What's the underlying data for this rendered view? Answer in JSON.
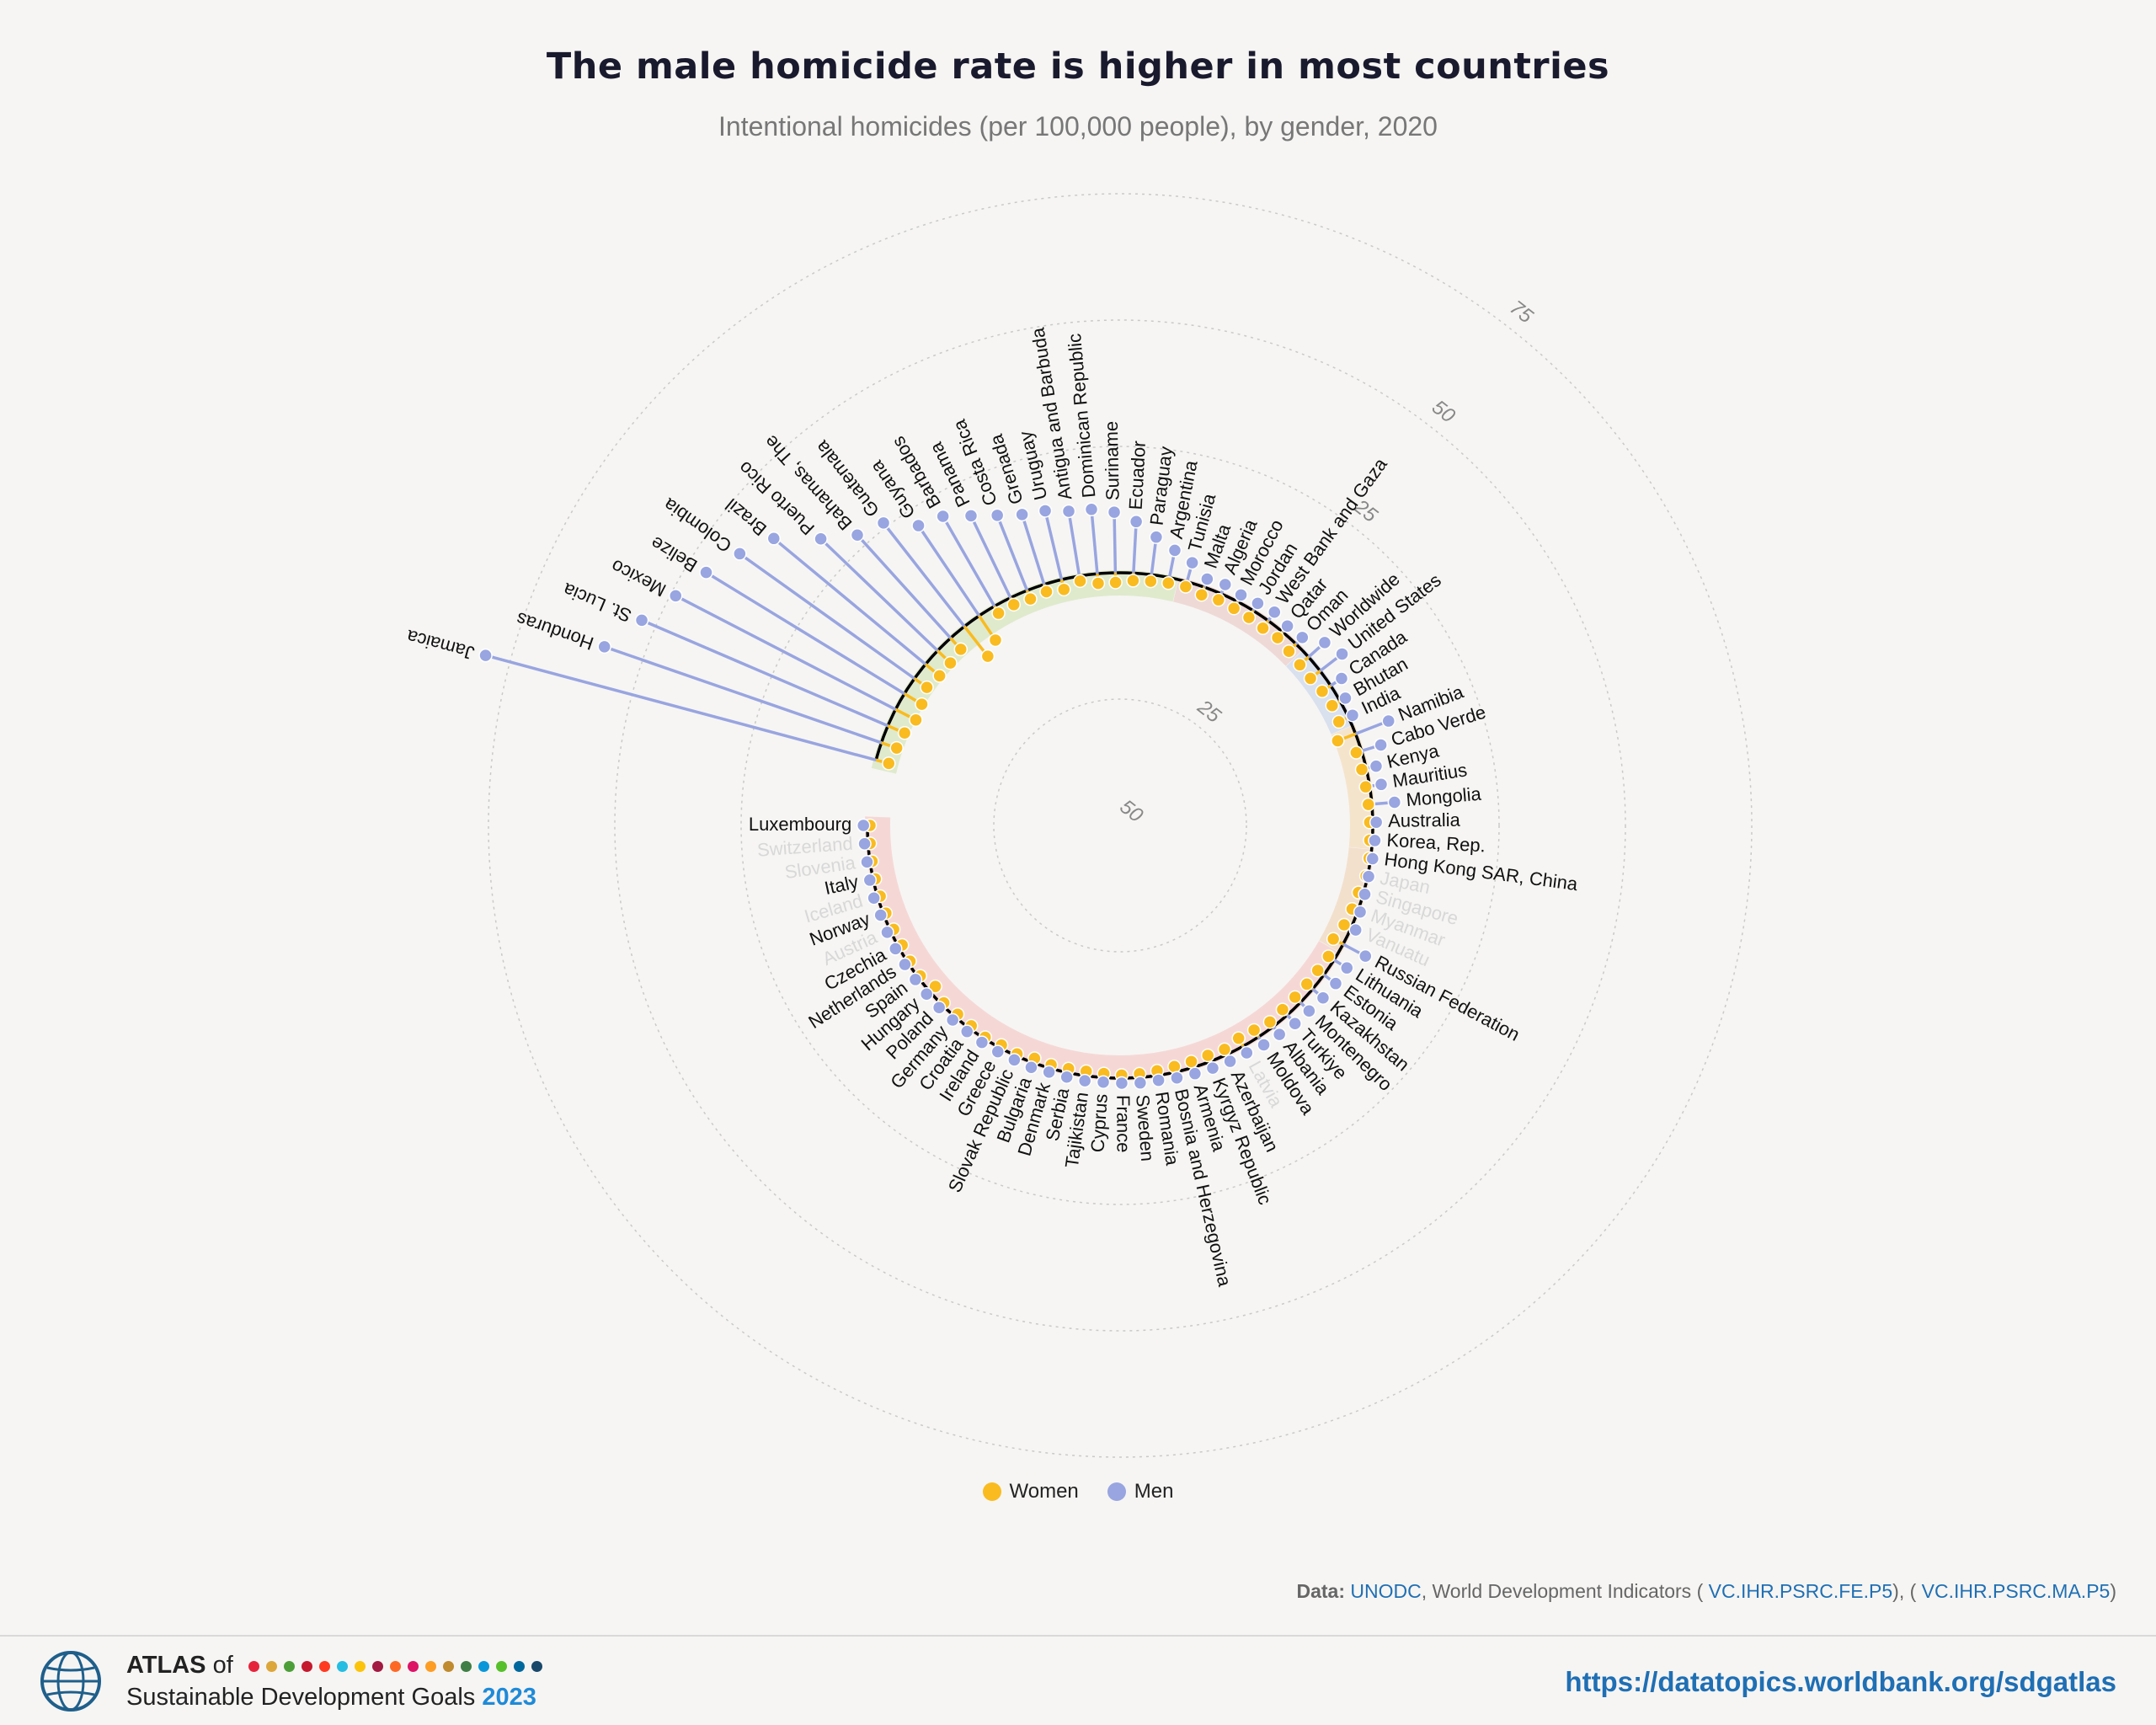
{
  "header": {
    "title": "The male homicide rate is higher in most countries",
    "subtitle": "Intentional homicides (per 100,000 people), by gender, 2020"
  },
  "legend": {
    "women_label": "Women",
    "men_label": "Men"
  },
  "colors": {
    "women": "#f9bb1f",
    "men": "#98a5e0",
    "baseline": "#000000",
    "band_latam": "#dbe8c6",
    "band_mena": "#ecd4d0",
    "band_southasia": "#d4dcec",
    "band_africa": "#f4e0c4",
    "band_eastasia": "#f1dcc6",
    "band_europe": "#f4d2d0"
  },
  "source": {
    "prefix": "Data:",
    "unodc": "UNODC",
    "wdi": ", World Development Indicators (",
    "code_fe": "VC.IHR.PSRC.FE.P5",
    "mid": "), (",
    "code_ma": "VC.IHR.PSRC.MA.P5",
    "end": ")"
  },
  "footer": {
    "atlas": "ATLAS",
    "of": "of",
    "line2": "Sustainable Development Goals",
    "year": "2023",
    "url": "https://datatopics.worldbank.org/sdgatlas",
    "sdg_colors": [
      "#e5243b",
      "#dda63a",
      "#4c9f38",
      "#c5192d",
      "#ff3a21",
      "#26bde2",
      "#fcc30b",
      "#a21942",
      "#fd6925",
      "#dd1367",
      "#fd9d24",
      "#bf8b2e",
      "#3f7e44",
      "#0a97d9",
      "#56c02b",
      "#00689d",
      "#19486a"
    ]
  },
  "chart_data": {
    "type": "radial-dumbbell",
    "title": "The male homicide rate is higher in most countries",
    "subtitle": "Intentional homicides (per 100,000 people), by gender, 2020",
    "unit": "per 100,000 people",
    "scale_outward_ticks": [
      25,
      50,
      75
    ],
    "scale_inward_ticks": [
      25,
      50
    ],
    "series": [
      "Women",
      "Men"
    ],
    "countries": [
      {
        "name": "Luxembourg",
        "women": 0.5,
        "men": 0.8,
        "label": true
      },
      {
        "name": "Switzerland",
        "women": 0.4,
        "men": 0.7,
        "label": false
      },
      {
        "name": "Slovenia",
        "women": 0.4,
        "men": 0.6,
        "label": false
      },
      {
        "name": "Italy",
        "women": 0.4,
        "men": 0.7,
        "label": true
      },
      {
        "name": "Iceland",
        "women": 0.5,
        "men": 0.8,
        "label": false
      },
      {
        "name": "Norway",
        "women": 0.5,
        "men": 0.6,
        "label": true
      },
      {
        "name": "Austria",
        "women": 0.7,
        "men": 0.7,
        "label": false
      },
      {
        "name": "Czechia",
        "women": 0.8,
        "men": 0.7,
        "label": true
      },
      {
        "name": "Netherlands",
        "women": 0.5,
        "men": 0.7,
        "label": true
      },
      {
        "name": "Spain",
        "women": 0.5,
        "men": 0.7,
        "label": true
      },
      {
        "name": "Hungary",
        "women": 1.5,
        "men": 0.8,
        "label": true
      },
      {
        "name": "Poland",
        "women": 0.5,
        "men": 0.8,
        "label": true
      },
      {
        "name": "Germany",
        "women": 0.7,
        "men": 0.8,
        "label": true
      },
      {
        "name": "Croatia",
        "women": 0.6,
        "men": 0.8,
        "label": true
      },
      {
        "name": "Ireland",
        "women": 0.3,
        "men": 0.9,
        "label": true
      },
      {
        "name": "Greece",
        "women": 0.6,
        "men": 0.9,
        "label": true
      },
      {
        "name": "Slovak Republic",
        "women": 0.4,
        "men": 0.9,
        "label": true
      },
      {
        "name": "Bulgaria",
        "women": 0.9,
        "men": 1.0,
        "label": true
      },
      {
        "name": "Denmark",
        "women": 0.7,
        "men": 0.8,
        "label": true
      },
      {
        "name": "Serbia",
        "women": 0.8,
        "men": 0.9,
        "label": true
      },
      {
        "name": "Tajikistan",
        "women": 0.9,
        "men": 1.0,
        "label": true
      },
      {
        "name": "Cyprus",
        "women": 0.8,
        "men": 0.9,
        "label": true
      },
      {
        "name": "France",
        "women": 0.6,
        "men": 1.0,
        "label": true
      },
      {
        "name": "Sweden",
        "women": 0.7,
        "men": 1.1,
        "label": true
      },
      {
        "name": "Romania",
        "women": 0.9,
        "men": 1.0,
        "label": true
      },
      {
        "name": "Bosnia and Herzegovina",
        "women": 1.1,
        "men": 1.2,
        "label": true
      },
      {
        "name": "Armenia",
        "women": 1.2,
        "men": 1.3,
        "label": true
      },
      {
        "name": "Kyrgyz Republic",
        "women": 1.3,
        "men": 1.4,
        "label": true
      },
      {
        "name": "Azerbaijan",
        "women": 1.1,
        "men": 1.5,
        "label": true
      },
      {
        "name": "Latvia",
        "women": 1.8,
        "men": 1.5,
        "label": false
      },
      {
        "name": "Moldova",
        "women": 1.6,
        "men": 1.9,
        "label": true
      },
      {
        "name": "Albania",
        "women": 1.1,
        "men": 2.0,
        "label": true
      },
      {
        "name": "Turkiye",
        "women": 1.4,
        "men": 2.3,
        "label": true
      },
      {
        "name": "Montenegro",
        "women": 1.5,
        "men": 2.4,
        "label": true
      },
      {
        "name": "Kazakhstan",
        "women": 1.5,
        "men": 2.7,
        "label": true
      },
      {
        "name": "Estonia",
        "women": 1.5,
        "men": 2.9,
        "label": true
      },
      {
        "name": "Lithuania",
        "women": 1.3,
        "men": 3.0,
        "label": true
      },
      {
        "name": "Russian Federation",
        "women": 2.2,
        "men": 5.0,
        "label": true
      },
      {
        "name": "Vanuatu",
        "women": 1.5,
        "men": 1.0,
        "label": false
      },
      {
        "name": "Myanmar",
        "women": 1.2,
        "men": 0.5,
        "label": false
      },
      {
        "name": "Singapore",
        "women": 1.0,
        "men": 0.3,
        "label": false
      },
      {
        "name": "Japan",
        "women": 0.3,
        "men": 0.2,
        "label": false
      },
      {
        "name": "Hong Kong SAR, China",
        "women": 0.3,
        "men": 0.4,
        "label": true
      },
      {
        "name": "Korea, Rep.",
        "women": 0.5,
        "men": 0.5,
        "label": true
      },
      {
        "name": "Australia",
        "women": 0.6,
        "men": 0.7,
        "label": true
      },
      {
        "name": "Mongolia",
        "women": 0.7,
        "men": 4.5,
        "label": true
      },
      {
        "name": "Mauritius",
        "women": 0.8,
        "men": 2.3,
        "label": true
      },
      {
        "name": "Kenya",
        "women": 0.9,
        "men": 2.0,
        "label": true
      },
      {
        "name": "Cabo Verde",
        "women": 1.1,
        "men": 4.0,
        "label": true
      },
      {
        "name": "Namibia",
        "women": 3.8,
        "men": 7.0,
        "label": true
      },
      {
        "name": "India",
        "women": 2.1,
        "men": 0.9,
        "label": true
      },
      {
        "name": "Bhutan",
        "women": 1.8,
        "men": 1.2,
        "label": true
      },
      {
        "name": "Canada",
        "women": 2.0,
        "men": 2.6,
        "label": true
      },
      {
        "name": "United States",
        "women": 2.4,
        "men": 5.5,
        "label": true
      },
      {
        "name": "Worldwide",
        "women": 2.3,
        "men": 4.3,
        "label": true
      },
      {
        "name": "Oman",
        "women": 2.0,
        "men": 1.8,
        "label": true
      },
      {
        "name": "Qatar",
        "women": 1.5,
        "men": 1.5,
        "label": true
      },
      {
        "name": "West Bank and Gaza",
        "women": 1.8,
        "men": 2.1,
        "label": true
      },
      {
        "name": "Jordan",
        "women": 1.6,
        "men": 1.7,
        "label": true
      },
      {
        "name": "Morocco",
        "women": 1.5,
        "men": 1.5,
        "label": true
      },
      {
        "name": "Algeria",
        "women": 1.3,
        "men": 2.0,
        "label": true
      },
      {
        "name": "Malta",
        "women": 1.6,
        "men": 1.7,
        "label": true
      },
      {
        "name": "Tunisia",
        "women": 1.0,
        "men": 3.9,
        "label": true
      },
      {
        "name": "Argentina",
        "women": 1.1,
        "men": 5.5,
        "label": true
      },
      {
        "name": "Paraguay",
        "women": 1.3,
        "men": 7.5,
        "label": true
      },
      {
        "name": "Ecuador",
        "women": 1.5,
        "men": 10.2,
        "label": true
      },
      {
        "name": "Suriname",
        "women": 1.9,
        "men": 12.0,
        "label": true
      },
      {
        "name": "Dominican Republic",
        "women": 1.9,
        "men": 12.8,
        "label": true
      },
      {
        "name": "Antigua and Barbuda",
        "women": 1.0,
        "men": 13.0,
        "label": true
      },
      {
        "name": "Uruguay",
        "women": 2.0,
        "men": 14.0,
        "label": true
      },
      {
        "name": "Grenada",
        "women": 1.5,
        "men": 14.5,
        "label": true
      },
      {
        "name": "Costa Rica",
        "women": 1.8,
        "men": 16.0,
        "label": true
      },
      {
        "name": "Panama",
        "women": 1.5,
        "men": 18.0,
        "label": true
      },
      {
        "name": "Barbados",
        "women": 1.6,
        "men": 20.5,
        "label": true
      },
      {
        "name": "Guyana",
        "women": 5.8,
        "men": 21.5,
        "label": true
      },
      {
        "name": "Guatemala",
        "women": 7.5,
        "men": 26.0,
        "label": true
      },
      {
        "name": "Bahamas, The",
        "women": 3.0,
        "men": 27.5,
        "label": true
      },
      {
        "name": "Puerto Rico",
        "women": 3.5,
        "men": 32.0,
        "label": true
      },
      {
        "name": "Brazil",
        "women": 3.6,
        "men": 39.0,
        "label": true
      },
      {
        "name": "Colombia",
        "women": 3.0,
        "men": 42.5,
        "label": true
      },
      {
        "name": "Belize",
        "women": 4.0,
        "men": 46.0,
        "label": true
      },
      {
        "name": "Mexico",
        "women": 4.5,
        "men": 49.0,
        "label": true
      },
      {
        "name": "St. Lucia",
        "women": 3.6,
        "men": 53.0,
        "label": true
      },
      {
        "name": "Honduras",
        "women": 3.2,
        "men": 58.0,
        "label": true
      },
      {
        "name": "Jamaica",
        "women": 2.6,
        "men": 80.0,
        "label": true
      }
    ]
  }
}
